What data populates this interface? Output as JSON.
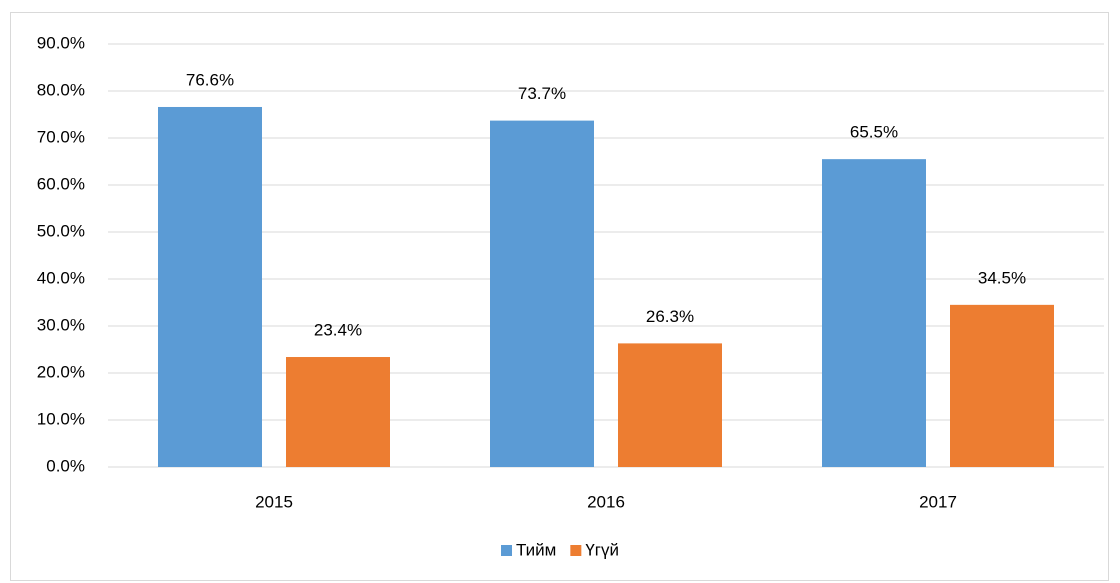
{
  "chart_data": {
    "type": "bar",
    "categories": [
      "2015",
      "2016",
      "2017"
    ],
    "series": [
      {
        "name": "Тийм",
        "color": "#5b9bd5",
        "values": [
          76.6,
          73.7,
          65.5
        ],
        "value_labels": [
          "76.6%",
          "73.7%",
          "65.5%"
        ]
      },
      {
        "name": "Үгүй",
        "color": "#ed7d31",
        "values": [
          23.4,
          26.3,
          34.5
        ],
        "value_labels": [
          "23.4%",
          "26.3%",
          "34.5%"
        ]
      }
    ],
    "ylim": [
      0,
      90
    ],
    "yticks": [
      {
        "value": 0,
        "label": "0.0%"
      },
      {
        "value": 10,
        "label": "10.0%"
      },
      {
        "value": 20,
        "label": "20.0%"
      },
      {
        "value": 30,
        "label": "30.0%"
      },
      {
        "value": 40,
        "label": "40.0%"
      },
      {
        "value": 50,
        "label": "50.0%"
      },
      {
        "value": 60,
        "label": "60.0%"
      },
      {
        "value": 70,
        "label": "70.0%"
      },
      {
        "value": 80,
        "label": "80.0%"
      },
      {
        "value": 90,
        "label": "90.0%"
      }
    ],
    "grid": true,
    "legend": "bottom"
  }
}
